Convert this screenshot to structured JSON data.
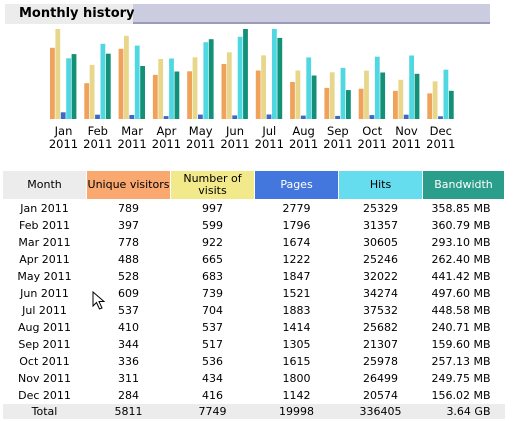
{
  "section_title": "Monthly history",
  "colors": {
    "unique": "#f0a25a",
    "visits": "#e8d68a",
    "pages": "#3e67c8",
    "hits": "#4fd8e2",
    "bandwidth": "#129078"
  },
  "chart_data": {
    "type": "bar",
    "categories": [
      "Jan\n2011",
      "Feb\n2011",
      "Mar\n2011",
      "Apr\n2011",
      "May\n2011",
      "Jun\n2011",
      "Jul\n2011",
      "Aug\n2011",
      "Sep\n2011",
      "Oct\n2011",
      "Nov\n2011",
      "Dec\n2011"
    ],
    "series": [
      {
        "name": "Unique visitors",
        "values": [
          789,
          397,
          778,
          488,
          528,
          609,
          537,
          410,
          344,
          336,
          311,
          284
        ]
      },
      {
        "name": "Number of visits",
        "values": [
          997,
          599,
          922,
          665,
          683,
          739,
          704,
          537,
          517,
          536,
          434,
          416
        ]
      },
      {
        "name": "Pages",
        "values": [
          2779,
          1796,
          1674,
          1222,
          1847,
          1521,
          1883,
          1414,
          1305,
          1615,
          1800,
          1142
        ]
      },
      {
        "name": "Hits",
        "values": [
          25329,
          31357,
          30605,
          25246,
          32022,
          34274,
          37532,
          25682,
          21307,
          25978,
          26499,
          20574
        ]
      },
      {
        "name": "Bandwidth",
        "values": [
          358.85,
          360.79,
          293.1,
          262.4,
          441.42,
          497.6,
          448.58,
          240.71,
          159.6,
          257.13,
          249.75,
          156.02
        ]
      }
    ],
    "grid": false,
    "legend": "none"
  },
  "table": {
    "headers": {
      "month": "Month",
      "unique": "Unique visitors",
      "visits": "Number of visits",
      "pages": "Pages",
      "hits": "Hits",
      "bandwidth": "Bandwidth"
    },
    "rows": [
      {
        "month": "Jan 2011",
        "unique": "789",
        "visits": "997",
        "pages": "2779",
        "hits": "25329",
        "bandwidth": "358.85 MB"
      },
      {
        "month": "Feb 2011",
        "unique": "397",
        "visits": "599",
        "pages": "1796",
        "hits": "31357",
        "bandwidth": "360.79 MB"
      },
      {
        "month": "Mar 2011",
        "unique": "778",
        "visits": "922",
        "pages": "1674",
        "hits": "30605",
        "bandwidth": "293.10 MB"
      },
      {
        "month": "Apr 2011",
        "unique": "488",
        "visits": "665",
        "pages": "1222",
        "hits": "25246",
        "bandwidth": "262.40 MB"
      },
      {
        "month": "May 2011",
        "unique": "528",
        "visits": "683",
        "pages": "1847",
        "hits": "32022",
        "bandwidth": "441.42 MB"
      },
      {
        "month": "Jun 2011",
        "unique": "609",
        "visits": "739",
        "pages": "1521",
        "hits": "34274",
        "bandwidth": "497.60 MB"
      },
      {
        "month": "Jul 2011",
        "unique": "537",
        "visits": "704",
        "pages": "1883",
        "hits": "37532",
        "bandwidth": "448.58 MB"
      },
      {
        "month": "Aug 2011",
        "unique": "410",
        "visits": "537",
        "pages": "1414",
        "hits": "25682",
        "bandwidth": "240.71 MB"
      },
      {
        "month": "Sep 2011",
        "unique": "344",
        "visits": "517",
        "pages": "1305",
        "hits": "21307",
        "bandwidth": "159.60 MB"
      },
      {
        "month": "Oct 2011",
        "unique": "336",
        "visits": "536",
        "pages": "1615",
        "hits": "25978",
        "bandwidth": "257.13 MB"
      },
      {
        "month": "Nov 2011",
        "unique": "311",
        "visits": "434",
        "pages": "1800",
        "hits": "26499",
        "bandwidth": "249.75 MB"
      },
      {
        "month": "Dec 2011",
        "unique": "284",
        "visits": "416",
        "pages": "1142",
        "hits": "20574",
        "bandwidth": "156.02 MB"
      }
    ],
    "total": {
      "month": "Total",
      "unique": "5811",
      "visits": "7749",
      "pages": "19998",
      "hits": "336405",
      "bandwidth": "3.64 GB"
    }
  }
}
